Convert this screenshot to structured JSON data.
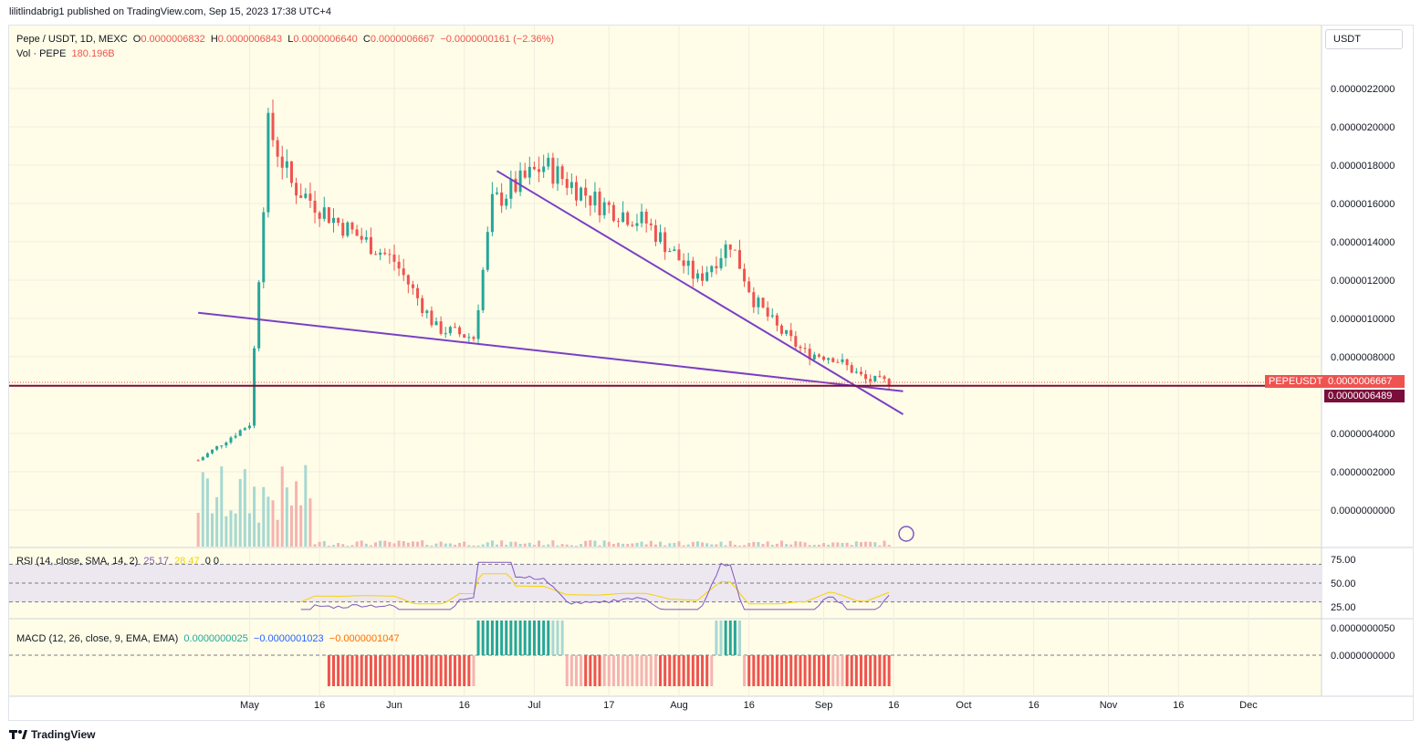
{
  "publisher": "lilitlindabrig1 published on TradingView.com, Sep 15, 2023 17:38 UTC+4",
  "footer_brand": "TradingView",
  "currency_selector": "USDT",
  "legend": {
    "symbol": "Pepe / USDT, 1D, MEXC",
    "o_label": "O",
    "o": "0.0000006832",
    "h_label": "H",
    "h": "0.0000006843",
    "l_label": "L",
    "l": "0.0000006640",
    "c_label": "C",
    "c": "0.0000006667",
    "change": "−0.0000000161 (−2.36%)",
    "vol_label": "Vol · PEPE",
    "vol": "180.196B"
  },
  "rsi_legend": {
    "label": "RSI (14, close, SMA, 14, 2)",
    "rsi": "25.17",
    "sma": "28.47",
    "extra": "0  0"
  },
  "macd_legend": {
    "label": "MACD (12, 26, close, 9, EMA, EMA)",
    "hist": "0.0000000025",
    "macd": "−0.0000001023",
    "signal": "−0.0000001047"
  },
  "price_tags": {
    "symbol": "PEPEUSDT",
    "last": "0.0000006667",
    "line": "0.0000006489"
  },
  "colors": {
    "up": "#26a69a",
    "down": "#ef5350",
    "trend": "#7b3fc4",
    "hline": "#7a0e3a",
    "bg": "#fffde7",
    "rsi": "#7e57c2",
    "rsi_sma": "#f5d300",
    "macd": "#2962ff",
    "signal": "#ff6d00"
  },
  "chart_data": [
    {
      "type": "candlestick",
      "title": "Pepe / USDT, 1D, MEXC",
      "y_ticks": [
        "0.0000022000",
        "0.0000020000",
        "0.0000018000",
        "0.0000016000",
        "0.0000014000",
        "0.0000012000",
        "0.0000010000",
        "0.0000008000",
        "0.0000004000",
        "0.0000002000",
        "0.0000000000"
      ],
      "x_ticks": [
        "May",
        "16",
        "Jun",
        "16",
        "Jul",
        "17",
        "Aug",
        "16",
        "Sep",
        "16",
        "Oct",
        "16",
        "Nov",
        "16",
        "Dec"
      ],
      "ylim": [
        0,
        2.3e-06
      ],
      "dates": [
        "2023-04-20",
        "2023-05-01",
        "2023-05-05",
        "2023-05-10",
        "2023-05-20",
        "2023-06-01",
        "2023-06-10",
        "2023-06-18",
        "2023-06-22",
        "2023-07-03",
        "2023-07-15",
        "2023-07-25",
        "2023-08-05",
        "2023-08-12",
        "2023-08-17",
        "2023-08-22",
        "2023-08-28",
        "2023-09-03",
        "2023-09-10",
        "2023-09-15"
      ],
      "close": [
        2.6e-07,
        4.5e-07,
        2e-06,
        1.7e-06,
        1.5e-06,
        1.3e-06,
        9.5e-07,
        9e-07,
        1.6e-06,
        1.8e-06,
        1.6e-06,
        1.5e-06,
        1.2e-06,
        1.4e-06,
        1.1e-06,
        9.5e-07,
        8.2e-07,
        8e-07,
        6.8e-07,
        6.667e-07
      ],
      "trendlines": [
        {
          "from": [
            "2023-04-20",
            1.03e-06
          ],
          "to": [
            "2023-09-18",
            6.2e-07
          ]
        },
        {
          "from": [
            "2023-06-23",
            1.77e-06
          ],
          "to": [
            "2023-09-18",
            5e-07
          ]
        }
      ],
      "horizontal_line": 6.489e-07,
      "last_price": 6.667e-07
    },
    {
      "type": "line",
      "title": "RSI (14, close, SMA, 14, 2)",
      "y_ticks": [
        "75.00",
        "50.00",
        "25.00"
      ],
      "series": [
        {
          "name": "RSI",
          "last": 25.17
        },
        {
          "name": "SMA",
          "last": 28.47
        }
      ]
    },
    {
      "type": "bar",
      "title": "MACD (12, 26, close, 9, EMA, EMA)",
      "y_ticks": [
        "0.0000000050",
        "0.0000000000"
      ],
      "series": [
        {
          "name": "Histogram",
          "last": 2.5e-09
        },
        {
          "name": "MACD",
          "last": -1.023e-07
        },
        {
          "name": "Signal",
          "last": -1.047e-07
        }
      ]
    }
  ]
}
